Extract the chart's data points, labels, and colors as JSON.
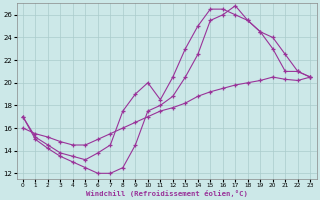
{
  "xlabel": "Windchill (Refroidissement éolien,°C)",
  "xlim": [
    -0.5,
    23.5
  ],
  "ylim": [
    11.5,
    27.0
  ],
  "yticks": [
    12,
    14,
    16,
    18,
    20,
    22,
    24,
    26
  ],
  "xticks": [
    0,
    1,
    2,
    3,
    4,
    5,
    6,
    7,
    8,
    9,
    10,
    11,
    12,
    13,
    14,
    15,
    16,
    17,
    18,
    19,
    20,
    21,
    22,
    23
  ],
  "bg_color": "#cce8e8",
  "grid_color": "#aacccc",
  "line_color": "#993399",
  "line1_x": [
    0,
    1,
    2,
    3,
    4,
    5,
    6,
    7,
    8,
    9,
    10,
    11,
    12,
    13,
    14,
    15,
    16,
    17,
    18,
    19,
    20,
    21,
    22,
    23
  ],
  "line1_y": [
    17.0,
    15.2,
    14.5,
    13.8,
    13.5,
    13.2,
    13.8,
    14.5,
    17.5,
    19.0,
    20.0,
    18.5,
    20.5,
    23.0,
    25.0,
    26.5,
    26.5,
    26.0,
    25.5,
    24.5,
    23.0,
    21.0,
    21.0,
    20.5
  ],
  "line2_x": [
    0,
    1,
    2,
    3,
    4,
    5,
    6,
    7,
    8,
    9,
    10,
    11,
    12,
    13,
    14,
    15,
    16,
    17,
    18,
    19,
    20,
    21,
    22,
    23
  ],
  "line2_y": [
    16.0,
    15.5,
    15.2,
    14.8,
    14.5,
    14.5,
    15.0,
    15.5,
    16.0,
    16.5,
    17.0,
    17.5,
    17.8,
    18.2,
    18.8,
    19.2,
    19.5,
    19.8,
    20.0,
    20.2,
    20.5,
    20.3,
    20.2,
    20.5
  ],
  "line3_x": [
    0,
    1,
    2,
    3,
    4,
    5,
    6,
    7,
    8,
    9,
    10,
    11,
    12,
    13,
    14,
    15,
    16,
    17,
    18,
    19,
    20,
    21,
    22,
    23
  ],
  "line3_y": [
    17.0,
    15.0,
    14.2,
    13.5,
    13.0,
    12.5,
    12.0,
    12.0,
    12.5,
    14.5,
    17.5,
    18.0,
    18.8,
    20.5,
    22.5,
    25.5,
    26.0,
    26.8,
    25.5,
    24.5,
    24.0,
    22.5,
    21.0,
    20.5
  ]
}
